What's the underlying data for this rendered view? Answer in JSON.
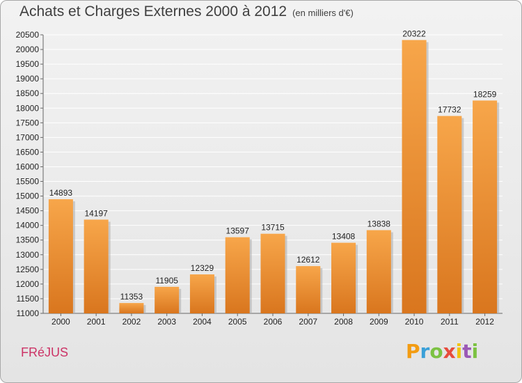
{
  "header": {
    "title": "Achats et Charges Externes 2000 à 2012",
    "unit": "(en milliers d'€)"
  },
  "footer": {
    "city": "FRéJUS",
    "logo_letters": [
      "P",
      "r",
      "o",
      "x",
      "i",
      "t",
      "i"
    ],
    "logo_colors": [
      "#f39c12",
      "#3aa0d8",
      "#7cc242",
      "#e74c3c",
      "#f1c40f",
      "#9b59b6",
      "#7cc242"
    ]
  },
  "colors": {
    "bar_top": "#f7a64a",
    "bar_bottom": "#d9761e",
    "bar_shadow": "#b0b0b0",
    "grid": "#ffffff"
  },
  "chart_data": {
    "type": "bar",
    "categories": [
      "2000",
      "2001",
      "2002",
      "2003",
      "2004",
      "2005",
      "2006",
      "2007",
      "2008",
      "2009",
      "2010",
      "2011",
      "2012"
    ],
    "values": [
      14893,
      14197,
      11353,
      11905,
      12329,
      13597,
      13715,
      12612,
      13408,
      13838,
      20322,
      17732,
      18259
    ],
    "title": "Achats et Charges Externes 2000 à 2012",
    "xlabel": "",
    "ylabel": "",
    "ylim": [
      11000,
      20500
    ],
    "yticks": [
      11000,
      11500,
      12000,
      12500,
      13000,
      13500,
      14000,
      14500,
      15000,
      15500,
      16000,
      16500,
      17000,
      17500,
      18000,
      18500,
      19000,
      19500,
      20000,
      20500
    ],
    "grid": true,
    "legend": "none"
  }
}
